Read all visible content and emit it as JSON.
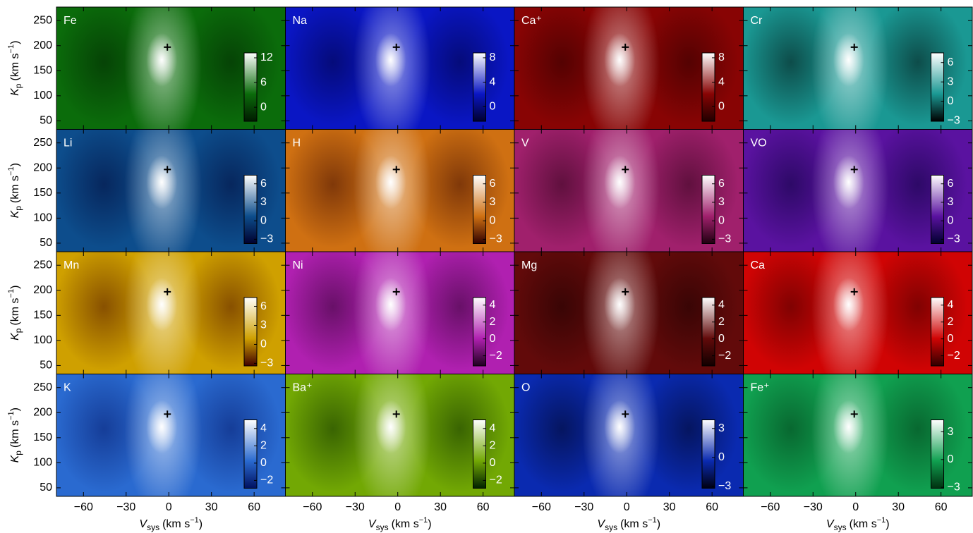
{
  "chart_data": [
    {
      "type": "heatmap",
      "title": "Fe",
      "colors": [
        "#001a00",
        "#0b6c0b",
        "#ffffff"
      ],
      "cbar_lim": [
        -3.4,
        13.2
      ],
      "cbar_ticks": [
        0,
        6,
        12
      ],
      "xlim": [
        -79,
        82
      ],
      "ylim": [
        33,
        277
      ],
      "xticks": [
        {
          "value": -60,
          "label": "−60"
        },
        {
          "value": -30,
          "label": "−30"
        },
        0,
        30,
        60
      ],
      "yticks": [
        50,
        100,
        150,
        200,
        250
      ],
      "marker": {
        "x": -1,
        "y": 197
      },
      "y_label": {
        "symbol": "K",
        "subscript": "p",
        "unit": "(km s",
        "exponent": "−1",
        "close": ")"
      }
    },
    {
      "type": "heatmap",
      "title": "Na",
      "colors": [
        "#000030",
        "#0a16c4",
        "#ffffff"
      ],
      "cbar_lim": [
        -2.4,
        8.8
      ],
      "cbar_ticks": [
        0,
        4,
        8
      ],
      "xlim": [
        -79,
        82
      ],
      "ylim": [
        33,
        277
      ],
      "xticks": [
        {
          "value": -60,
          "label": "−60"
        },
        {
          "value": -30,
          "label": "−30"
        },
        0,
        30,
        60
      ],
      "yticks": [
        50,
        100,
        150,
        200,
        250
      ],
      "marker": {
        "x": -1,
        "y": 197
      }
    },
    {
      "type": "heatmap",
      "title": "Ca⁺",
      "colors": [
        "#200000",
        "#880404",
        "#ffffff"
      ],
      "cbar_lim": [
        -2.4,
        8.8
      ],
      "cbar_ticks": [
        0,
        4,
        8
      ],
      "xlim": [
        -79,
        82
      ],
      "ylim": [
        33,
        277
      ],
      "xticks": [
        {
          "value": -60,
          "label": "−60"
        },
        {
          "value": -30,
          "label": "−30"
        },
        0,
        30,
        60
      ],
      "yticks": [
        50,
        100,
        150,
        200,
        250
      ],
      "marker": {
        "x": -1,
        "y": 197
      }
    },
    {
      "type": "heatmap",
      "title": "Cr",
      "colors": [
        "#000000",
        "#1a9893",
        "#ffffff"
      ],
      "cbar_lim": [
        -3.1,
        7.5
      ],
      "cbar_ticks": [
        {
          "value": -3,
          "label": "−3"
        },
        0,
        3,
        6
      ],
      "xlim": [
        -79,
        82
      ],
      "ylim": [
        33,
        277
      ],
      "xticks": [
        {
          "value": -60,
          "label": "−60"
        },
        {
          "value": -30,
          "label": "−30"
        },
        0,
        30,
        60
      ],
      "yticks": [
        50,
        100,
        150,
        200,
        250
      ],
      "marker": {
        "x": -1,
        "y": 197
      }
    },
    {
      "type": "heatmap",
      "title": "Li",
      "colors": [
        "#00002e",
        "#0d4d8c",
        "#ffffff"
      ],
      "cbar_lim": [
        -3.7,
        7.4
      ],
      "cbar_ticks": [
        {
          "value": -3,
          "label": "−3"
        },
        0,
        3,
        6
      ],
      "xlim": [
        -79,
        82
      ],
      "ylim": [
        33,
        277
      ],
      "xticks": [
        {
          "value": -60,
          "label": "−60"
        },
        {
          "value": -30,
          "label": "−30"
        },
        0,
        30,
        60
      ],
      "yticks": [
        50,
        100,
        150,
        200,
        250
      ],
      "marker": {
        "x": -1,
        "y": 197
      },
      "y_label": {
        "symbol": "K",
        "subscript": "p",
        "unit": "(km s",
        "exponent": "−1",
        "close": ")"
      }
    },
    {
      "type": "heatmap",
      "title": "H",
      "colors": [
        "#300000",
        "#cf7012",
        "#ffffff"
      ],
      "cbar_lim": [
        -3.7,
        7.4
      ],
      "cbar_ticks": [
        {
          "value": -3,
          "label": "−3"
        },
        0,
        3,
        6
      ],
      "xlim": [
        -79,
        82
      ],
      "ylim": [
        33,
        277
      ],
      "xticks": [
        {
          "value": -60,
          "label": "−60"
        },
        {
          "value": -30,
          "label": "−30"
        },
        0,
        30,
        60
      ],
      "yticks": [
        50,
        100,
        150,
        200,
        250
      ],
      "marker": {
        "x": -1,
        "y": 197
      }
    },
    {
      "type": "heatmap",
      "title": "V",
      "colors": [
        "#200010",
        "#a0206c",
        "#ffffff"
      ],
      "cbar_lim": [
        -3.7,
        7.4
      ],
      "cbar_ticks": [
        {
          "value": -3,
          "label": "−3"
        },
        0,
        3,
        6
      ],
      "xlim": [
        -79,
        82
      ],
      "ylim": [
        33,
        277
      ],
      "xticks": [
        {
          "value": -60,
          "label": "−60"
        },
        {
          "value": -30,
          "label": "−30"
        },
        0,
        30,
        60
      ],
      "yticks": [
        50,
        100,
        150,
        200,
        250
      ],
      "marker": {
        "x": -1,
        "y": 197
      }
    },
    {
      "type": "heatmap",
      "title": "VO",
      "colors": [
        "#00002e",
        "#5a12a0",
        "#ffffff"
      ],
      "cbar_lim": [
        -3.7,
        7.4
      ],
      "cbar_ticks": [
        {
          "value": -3,
          "label": "−3"
        },
        0,
        3,
        6
      ],
      "xlim": [
        -79,
        82
      ],
      "ylim": [
        33,
        277
      ],
      "xticks": [
        {
          "value": -60,
          "label": "−60"
        },
        {
          "value": -30,
          "label": "−30"
        },
        0,
        30,
        60
      ],
      "yticks": [
        50,
        100,
        150,
        200,
        250
      ],
      "marker": {
        "x": -1,
        "y": 197
      }
    },
    {
      "type": "heatmap",
      "title": "Mn",
      "colors": [
        "#400000",
        "#cfa000",
        "#ffffff"
      ],
      "cbar_lim": [
        -3.4,
        7.4
      ],
      "cbar_ticks": [
        {
          "value": -3,
          "label": "−3"
        },
        0,
        3,
        6
      ],
      "xlim": [
        -79,
        82
      ],
      "ylim": [
        33,
        277
      ],
      "xticks": [
        {
          "value": -60,
          "label": "−60"
        },
        {
          "value": -30,
          "label": "−30"
        },
        0,
        30,
        60
      ],
      "yticks": [
        50,
        100,
        150,
        200,
        250
      ],
      "marker": {
        "x": -1,
        "y": 197
      },
      "y_label": {
        "symbol": "K",
        "subscript": "p",
        "unit": "(km s",
        "exponent": "−1",
        "close": ")"
      }
    },
    {
      "type": "heatmap",
      "title": "Ni",
      "colors": [
        "#200020",
        "#b020b0",
        "#ffffff"
      ],
      "cbar_lim": [
        -3.2,
        4.9
      ],
      "cbar_ticks": [
        {
          "value": -2,
          "label": "−2"
        },
        0,
        2,
        4
      ],
      "xlim": [
        -79,
        82
      ],
      "ylim": [
        33,
        277
      ],
      "xticks": [
        {
          "value": -60,
          "label": "−60"
        },
        {
          "value": -30,
          "label": "−30"
        },
        0,
        30,
        60
      ],
      "yticks": [
        50,
        100,
        150,
        200,
        250
      ],
      "marker": {
        "x": -1,
        "y": 197
      }
    },
    {
      "type": "heatmap",
      "title": "Mg",
      "colors": [
        "#100000",
        "#620a0a",
        "#ffffff"
      ],
      "cbar_lim": [
        -3.2,
        4.9
      ],
      "cbar_ticks": [
        {
          "value": -2,
          "label": "−2"
        },
        0,
        2,
        4
      ],
      "xlim": [
        -79,
        82
      ],
      "ylim": [
        33,
        277
      ],
      "xticks": [
        {
          "value": -60,
          "label": "−60"
        },
        {
          "value": -30,
          "label": "−30"
        },
        0,
        30,
        60
      ],
      "yticks": [
        50,
        100,
        150,
        200,
        250
      ],
      "marker": {
        "x": -1,
        "y": 197
      }
    },
    {
      "type": "heatmap",
      "title": "Ca",
      "colors": [
        "#300000",
        "#d00404",
        "#ffffff"
      ],
      "cbar_lim": [
        -3.2,
        4.9
      ],
      "cbar_ticks": [
        {
          "value": -2,
          "label": "−2"
        },
        0,
        2,
        4
      ],
      "xlim": [
        -79,
        82
      ],
      "ylim": [
        33,
        277
      ],
      "xticks": [
        {
          "value": -60,
          "label": "−60"
        },
        {
          "value": -30,
          "label": "−30"
        },
        0,
        30,
        60
      ],
      "yticks": [
        50,
        100,
        150,
        200,
        250
      ],
      "marker": {
        "x": -1,
        "y": 197
      }
    },
    {
      "type": "heatmap",
      "title": "K",
      "colors": [
        "#001060",
        "#2a6ad0",
        "#ffffff"
      ],
      "cbar_lim": [
        -2.9,
        5.0
      ],
      "cbar_ticks": [
        {
          "value": -2,
          "label": "−2"
        },
        0,
        2,
        4
      ],
      "xlim": [
        -79,
        82
      ],
      "ylim": [
        33,
        277
      ],
      "xticks": [
        {
          "value": -60,
          "label": "−60"
        },
        {
          "value": -30,
          "label": "−30"
        },
        0,
        30,
        60
      ],
      "yticks": [
        50,
        100,
        150,
        200,
        250
      ],
      "marker": {
        "x": -1,
        "y": 197
      },
      "y_label": {
        "symbol": "K",
        "subscript": "p",
        "unit": "(km s",
        "exponent": "−1",
        "close": ")"
      },
      "x_label": {
        "symbol": "V",
        "subscript": "sys",
        "unit": "(km s",
        "exponent": "−1",
        "close": ")"
      }
    },
    {
      "type": "heatmap",
      "title": "Ba⁺",
      "colors": [
        "#002000",
        "#72a804",
        "#ffffff"
      ],
      "cbar_lim": [
        -2.9,
        5.0
      ],
      "cbar_ticks": [
        {
          "value": -2,
          "label": "−2"
        },
        0,
        2,
        4
      ],
      "xlim": [
        -79,
        82
      ],
      "ylim": [
        33,
        277
      ],
      "xticks": [
        {
          "value": -60,
          "label": "−60"
        },
        {
          "value": -30,
          "label": "−30"
        },
        0,
        30,
        60
      ],
      "yticks": [
        50,
        100,
        150,
        200,
        250
      ],
      "marker": {
        "x": -1,
        "y": 197
      },
      "x_label": {
        "symbol": "V",
        "subscript": "sys",
        "unit": "(km s",
        "exponent": "−1",
        "close": ")"
      }
    },
    {
      "type": "heatmap",
      "title": "O",
      "colors": [
        "#000010",
        "#0a2ab0",
        "#ffffff"
      ],
      "cbar_lim": [
        -3.2,
        3.9
      ],
      "cbar_ticks": [
        {
          "value": -3,
          "label": "−3"
        },
        0,
        3
      ],
      "xlim": [
        -79,
        82
      ],
      "ylim": [
        33,
        277
      ],
      "xticks": [
        {
          "value": -60,
          "label": "−60"
        },
        {
          "value": -30,
          "label": "−30"
        },
        0,
        30,
        60
      ],
      "yticks": [
        50,
        100,
        150,
        200,
        250
      ],
      "marker": {
        "x": -1,
        "y": 197
      },
      "x_label": {
        "symbol": "V",
        "subscript": "sys",
        "unit": "(km s",
        "exponent": "−1",
        "close": ")"
      }
    },
    {
      "type": "heatmap",
      "title": "Fe⁺",
      "colors": [
        "#003010",
        "#10a050",
        "#ffffff"
      ],
      "cbar_lim": [
        -3.1,
        4.3
      ],
      "cbar_ticks": [
        {
          "value": -3,
          "label": "−3"
        },
        0,
        3
      ],
      "xlim": [
        -79,
        82
      ],
      "ylim": [
        33,
        277
      ],
      "xticks": [
        {
          "value": -60,
          "label": "−60"
        },
        {
          "value": -30,
          "label": "−30"
        },
        0,
        30,
        60
      ],
      "yticks": [
        50,
        100,
        150,
        200,
        250
      ],
      "marker": {
        "x": -1,
        "y": 197
      },
      "x_label": {
        "symbol": "V",
        "subscript": "sys",
        "unit": "(km s",
        "exponent": "−1",
        "close": ")"
      }
    }
  ]
}
